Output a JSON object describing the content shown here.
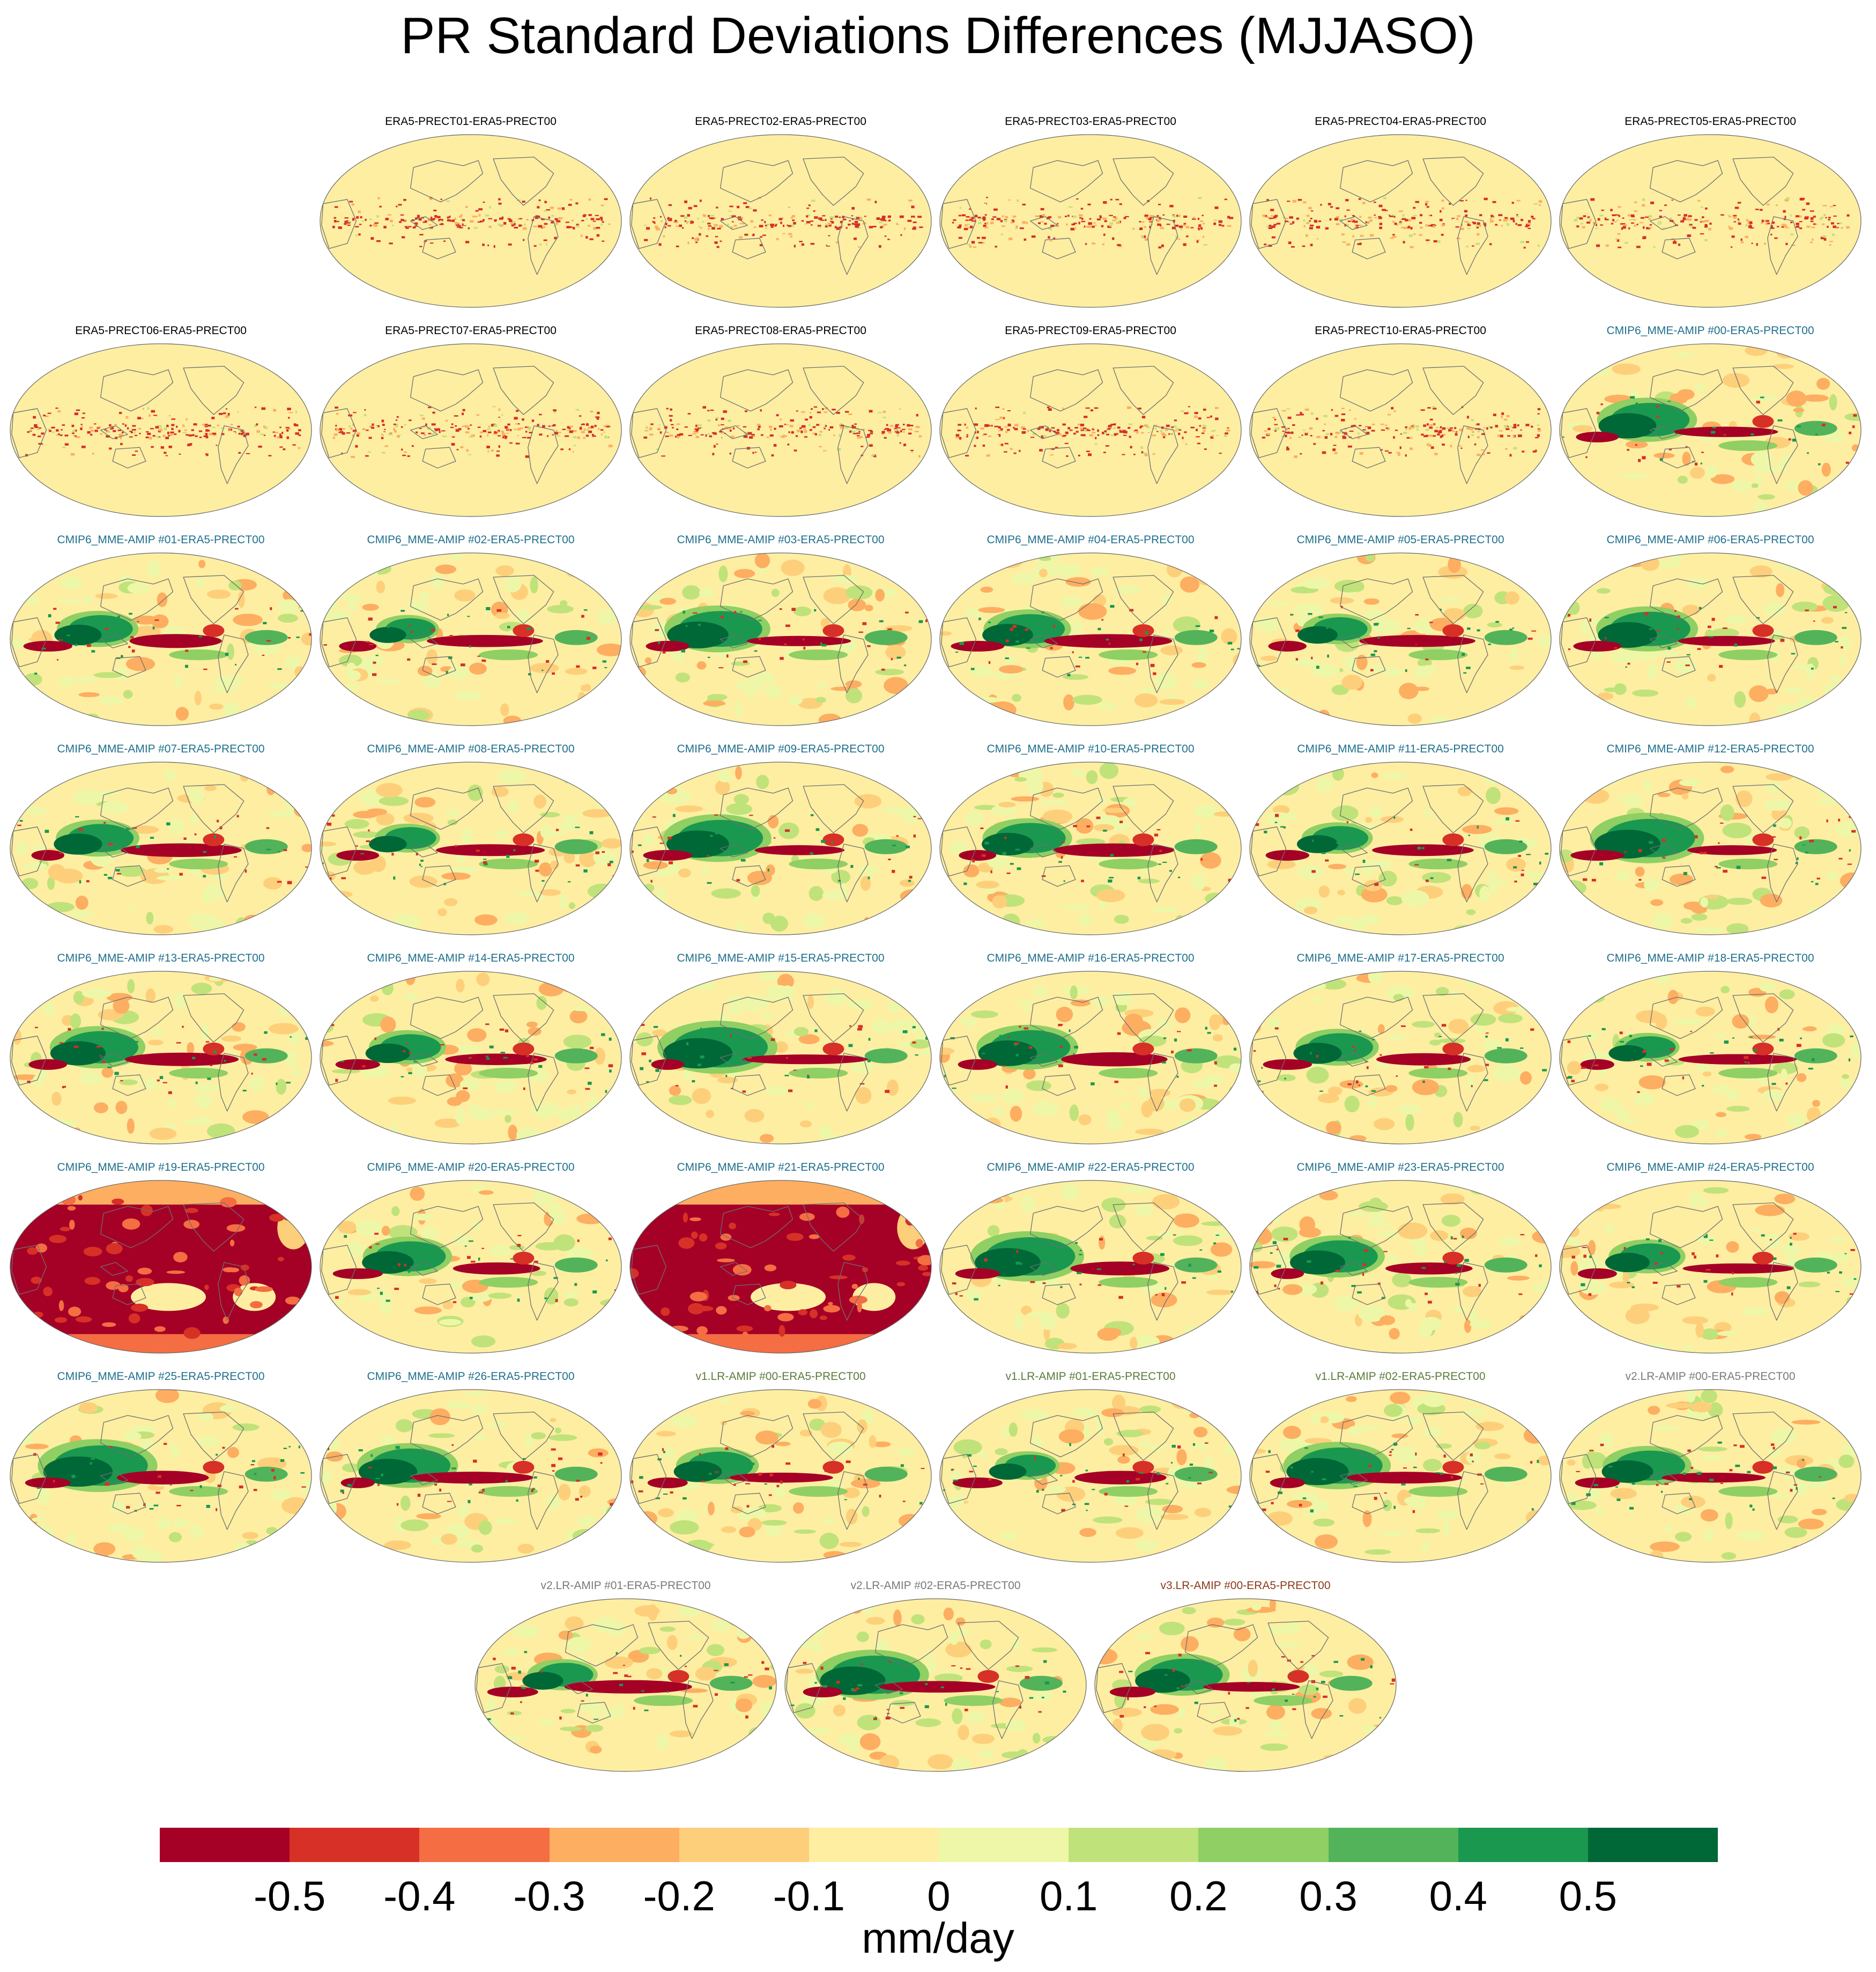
{
  "title": "PR Standard Deviations Differences (MJJASO)",
  "colors": {
    "era5_label": "#000000",
    "cmip6_label": "#1f6f8b",
    "v1_label": "#5b7b3a",
    "v2_label": "#7a7a7a",
    "v3_label": "#8b3a1a"
  },
  "chart_data": {
    "type": "heatmap",
    "map_projection": "global equal-area ellipse (Pacific-centred)",
    "layout": {
      "rows": 8,
      "columns": 6
    },
    "units": "mm/day",
    "colorbar": {
      "ticks": [
        "-0.5",
        "-0.4",
        "-0.3",
        "-0.2",
        "-0.1",
        "0",
        "0.1",
        "0.2",
        "0.3",
        "0.4",
        "0.5"
      ],
      "bounds": [
        -0.6,
        0.6
      ],
      "colors": [
        "#a50026",
        "#d73027",
        "#f46d43",
        "#fdae61",
        "#fee08b",
        "#ffffbf",
        "#d9ef8b",
        "#a6d96a",
        "#66bd63",
        "#1a9850",
        "#006837"
      ],
      "colors_full": [
        "#a50026",
        "#d73027",
        "#f46d43",
        "#fdae61",
        "#fecf7a",
        "#fdeea2",
        "#eef7a8",
        "#c0e27a",
        "#8fcf63",
        "#53b35a",
        "#1a9850",
        "#006837"
      ]
    },
    "panels": [
      {
        "row": 0,
        "col": 1,
        "label": "ERA5-PRECT01-ERA5-PRECT00",
        "group": "era5",
        "pattern": "era5"
      },
      {
        "row": 0,
        "col": 2,
        "label": "ERA5-PRECT02-ERA5-PRECT00",
        "group": "era5",
        "pattern": "era5"
      },
      {
        "row": 0,
        "col": 3,
        "label": "ERA5-PRECT03-ERA5-PRECT00",
        "group": "era5",
        "pattern": "era5"
      },
      {
        "row": 0,
        "col": 4,
        "label": "ERA5-PRECT04-ERA5-PRECT00",
        "group": "era5",
        "pattern": "era5"
      },
      {
        "row": 0,
        "col": 5,
        "label": "ERA5-PRECT05-ERA5-PRECT00",
        "group": "era5",
        "pattern": "era5"
      },
      {
        "row": 1,
        "col": 0,
        "label": "ERA5-PRECT06-ERA5-PRECT00",
        "group": "era5",
        "pattern": "era5"
      },
      {
        "row": 1,
        "col": 1,
        "label": "ERA5-PRECT07-ERA5-PRECT00",
        "group": "era5",
        "pattern": "era5"
      },
      {
        "row": 1,
        "col": 2,
        "label": "ERA5-PRECT08-ERA5-PRECT00",
        "group": "era5",
        "pattern": "era5"
      },
      {
        "row": 1,
        "col": 3,
        "label": "ERA5-PRECT09-ERA5-PRECT00",
        "group": "era5",
        "pattern": "era5"
      },
      {
        "row": 1,
        "col": 4,
        "label": "ERA5-PRECT10-ERA5-PRECT00",
        "group": "era5",
        "pattern": "era5"
      },
      {
        "row": 1,
        "col": 5,
        "label": "CMIP6_MME-AMIP  #00-ERA5-PRECT00",
        "group": "cmip6",
        "pattern": "model"
      },
      {
        "row": 2,
        "col": 0,
        "label": "CMIP6_MME-AMIP  #01-ERA5-PRECT00",
        "group": "cmip6",
        "pattern": "model"
      },
      {
        "row": 2,
        "col": 1,
        "label": "CMIP6_MME-AMIP  #02-ERA5-PRECT00",
        "group": "cmip6",
        "pattern": "model"
      },
      {
        "row": 2,
        "col": 2,
        "label": "CMIP6_MME-AMIP  #03-ERA5-PRECT00",
        "group": "cmip6",
        "pattern": "model"
      },
      {
        "row": 2,
        "col": 3,
        "label": "CMIP6_MME-AMIP  #04-ERA5-PRECT00",
        "group": "cmip6",
        "pattern": "model"
      },
      {
        "row": 2,
        "col": 4,
        "label": "CMIP6_MME-AMIP  #05-ERA5-PRECT00",
        "group": "cmip6",
        "pattern": "model"
      },
      {
        "row": 2,
        "col": 5,
        "label": "CMIP6_MME-AMIP  #06-ERA5-PRECT00",
        "group": "cmip6",
        "pattern": "model"
      },
      {
        "row": 3,
        "col": 0,
        "label": "CMIP6_MME-AMIP  #07-ERA5-PRECT00",
        "group": "cmip6",
        "pattern": "model"
      },
      {
        "row": 3,
        "col": 1,
        "label": "CMIP6_MME-AMIP  #08-ERA5-PRECT00",
        "group": "cmip6",
        "pattern": "model"
      },
      {
        "row": 3,
        "col": 2,
        "label": "CMIP6_MME-AMIP  #09-ERA5-PRECT00",
        "group": "cmip6",
        "pattern": "model"
      },
      {
        "row": 3,
        "col": 3,
        "label": "CMIP6_MME-AMIP  #10-ERA5-PRECT00",
        "group": "cmip6",
        "pattern": "model"
      },
      {
        "row": 3,
        "col": 4,
        "label": "CMIP6_MME-AMIP  #11-ERA5-PRECT00",
        "group": "cmip6",
        "pattern": "model"
      },
      {
        "row": 3,
        "col": 5,
        "label": "CMIP6_MME-AMIP  #12-ERA5-PRECT00",
        "group": "cmip6",
        "pattern": "model"
      },
      {
        "row": 4,
        "col": 0,
        "label": "CMIP6_MME-AMIP  #13-ERA5-PRECT00",
        "group": "cmip6",
        "pattern": "model"
      },
      {
        "row": 4,
        "col": 1,
        "label": "CMIP6_MME-AMIP  #14-ERA5-PRECT00",
        "group": "cmip6",
        "pattern": "model"
      },
      {
        "row": 4,
        "col": 2,
        "label": "CMIP6_MME-AMIP  #15-ERA5-PRECT00",
        "group": "cmip6",
        "pattern": "model"
      },
      {
        "row": 4,
        "col": 3,
        "label": "CMIP6_MME-AMIP  #16-ERA5-PRECT00",
        "group": "cmip6",
        "pattern": "model"
      },
      {
        "row": 4,
        "col": 4,
        "label": "CMIP6_MME-AMIP  #17-ERA5-PRECT00",
        "group": "cmip6",
        "pattern": "model"
      },
      {
        "row": 4,
        "col": 5,
        "label": "CMIP6_MME-AMIP  #18-ERA5-PRECT00",
        "group": "cmip6",
        "pattern": "model"
      },
      {
        "row": 5,
        "col": 0,
        "label": "CMIP6_MME-AMIP  #19-ERA5-PRECT00",
        "group": "cmip6",
        "pattern": "dry"
      },
      {
        "row": 5,
        "col": 1,
        "label": "CMIP6_MME-AMIP  #20-ERA5-PRECT00",
        "group": "cmip6",
        "pattern": "model"
      },
      {
        "row": 5,
        "col": 2,
        "label": "CMIP6_MME-AMIP  #21-ERA5-PRECT00",
        "group": "cmip6",
        "pattern": "dry"
      },
      {
        "row": 5,
        "col": 3,
        "label": "CMIP6_MME-AMIP  #22-ERA5-PRECT00",
        "group": "cmip6",
        "pattern": "model"
      },
      {
        "row": 5,
        "col": 4,
        "label": "CMIP6_MME-AMIP  #23-ERA5-PRECT00",
        "group": "cmip6",
        "pattern": "model"
      },
      {
        "row": 5,
        "col": 5,
        "label": "CMIP6_MME-AMIP  #24-ERA5-PRECT00",
        "group": "cmip6",
        "pattern": "model"
      },
      {
        "row": 6,
        "col": 0,
        "label": "CMIP6_MME-AMIP  #25-ERA5-PRECT00",
        "group": "cmip6",
        "pattern": "model"
      },
      {
        "row": 6,
        "col": 1,
        "label": "CMIP6_MME-AMIP  #26-ERA5-PRECT00",
        "group": "cmip6",
        "pattern": "model"
      },
      {
        "row": 6,
        "col": 2,
        "label": "v1.LR-AMIP  #00-ERA5-PRECT00",
        "group": "v1",
        "pattern": "model"
      },
      {
        "row": 6,
        "col": 3,
        "label": "v1.LR-AMIP  #01-ERA5-PRECT00",
        "group": "v1",
        "pattern": "model"
      },
      {
        "row": 6,
        "col": 4,
        "label": "v1.LR-AMIP  #02-ERA5-PRECT00",
        "group": "v1",
        "pattern": "model"
      },
      {
        "row": 6,
        "col": 5,
        "label": "v2.LR-AMIP  #00-ERA5-PRECT00",
        "group": "v2",
        "pattern": "model"
      },
      {
        "row": 7,
        "col": 1.5,
        "label": "v2.LR-AMIP  #01-ERA5-PRECT00",
        "group": "v2",
        "pattern": "model"
      },
      {
        "row": 7,
        "col": 2.5,
        "label": "v2.LR-AMIP  #02-ERA5-PRECT00",
        "group": "v2",
        "pattern": "model"
      },
      {
        "row": 7,
        "col": 3.5,
        "label": "v3.LR-AMIP  #00-ERA5-PRECT00",
        "group": "v3",
        "pattern": "model"
      }
    ]
  }
}
